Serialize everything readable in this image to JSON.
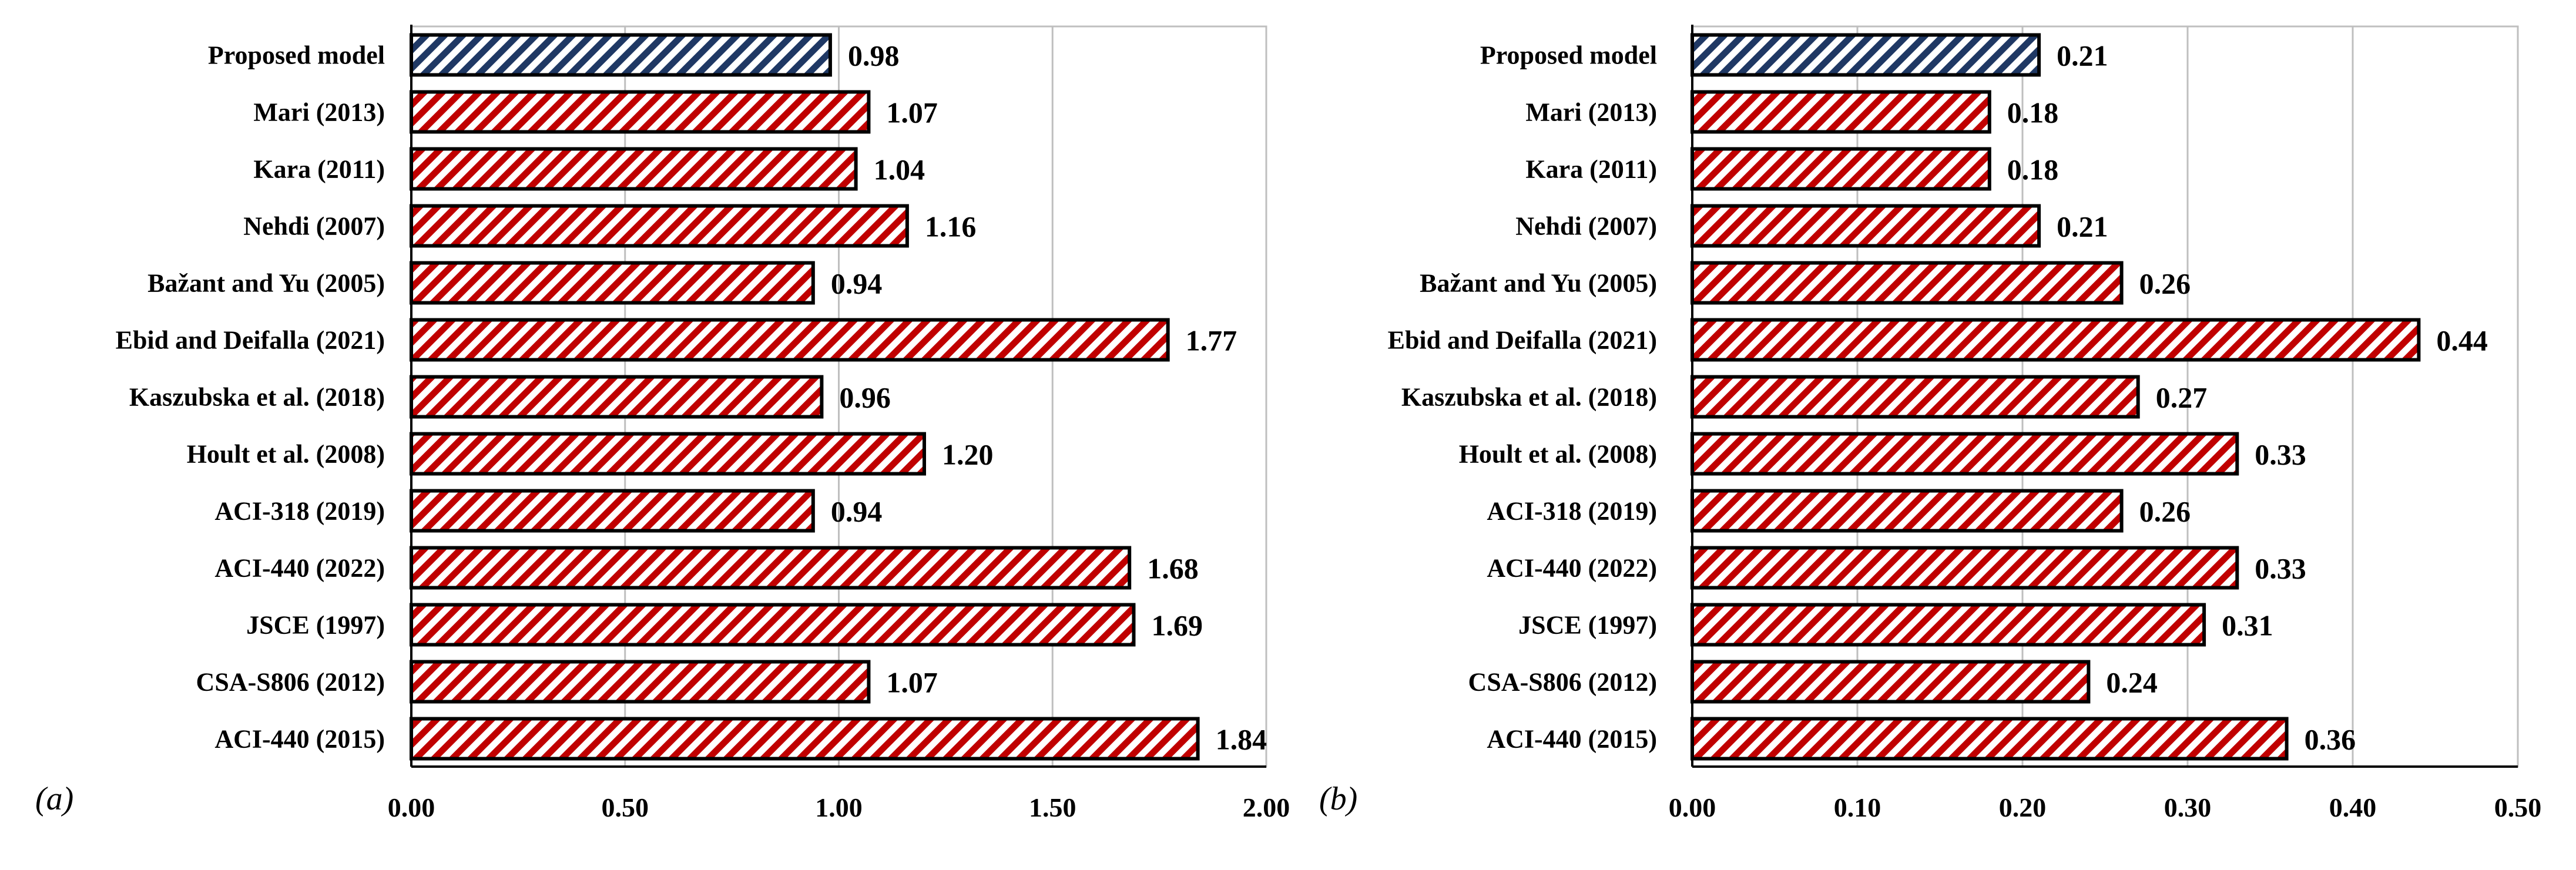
{
  "colors": {
    "proposed": "#1f3864",
    "others": "#c00000",
    "grid": "#bfbfbf"
  },
  "chart_data": [
    {
      "type": "bar",
      "orientation": "horizontal",
      "panel_label": "(a)",
      "categories": [
        "Proposed model",
        "Mari (2013)",
        "Kara (2011)",
        "Nehdi (2007)",
        "Bažant and Yu (2005)",
        "Ebid and Deifalla (2021)",
        "Kaszubska  et al. (2018)",
        "Hoult et al. (2008)",
        "ACI-318 (2019)",
        "ACI-440 (2022)",
        "JSCE (1997)",
        "CSA-S806 (2012)",
        "ACI-440 (2015)"
      ],
      "values": [
        0.98,
        1.07,
        1.04,
        1.16,
        0.94,
        1.77,
        0.96,
        1.2,
        0.94,
        1.68,
        1.69,
        1.07,
        1.84
      ],
      "value_labels": [
        "0.98",
        "1.07",
        "1.04",
        "1.16",
        "0.94",
        "1.77",
        "0.96",
        "1.20",
        "0.94",
        "1.68",
        "1.69",
        "1.07",
        "1.84"
      ],
      "xlim": [
        0,
        2
      ],
      "ticks": [
        0,
        0.5,
        1,
        1.5,
        2
      ],
      "tick_labels": [
        "0.00",
        "0.50",
        "1.00",
        "1.50",
        "2.00"
      ],
      "grid": true
    },
    {
      "type": "bar",
      "orientation": "horizontal",
      "panel_label": "(b)",
      "categories": [
        "Proposed model",
        "Mari (2013)",
        "Kara (2011)",
        "Nehdi (2007)",
        "Bažant and Yu (2005)",
        "Ebid and Deifalla (2021)",
        "Kaszubska  et al. (2018)",
        "Hoult et al. (2008)",
        "ACI-318 (2019)",
        "ACI-440 (2022)",
        "JSCE (1997)",
        "CSA-S806 (2012)",
        "ACI-440 (2015)"
      ],
      "values": [
        0.21,
        0.18,
        0.18,
        0.21,
        0.26,
        0.44,
        0.27,
        0.33,
        0.26,
        0.33,
        0.31,
        0.24,
        0.36
      ],
      "value_labels": [
        "0.21",
        "0.18",
        "0.18",
        "0.21",
        "0.26",
        "0.44",
        "0.27",
        "0.33",
        "0.26",
        "0.33",
        "0.31",
        "0.24",
        "0.36"
      ],
      "xlim": [
        0,
        0.5
      ],
      "ticks": [
        0,
        0.1,
        0.2,
        0.3,
        0.4,
        0.5
      ],
      "tick_labels": [
        "0.00",
        "0.10",
        "0.20",
        "0.30",
        "0.40",
        "0.50"
      ],
      "grid": true
    }
  ]
}
